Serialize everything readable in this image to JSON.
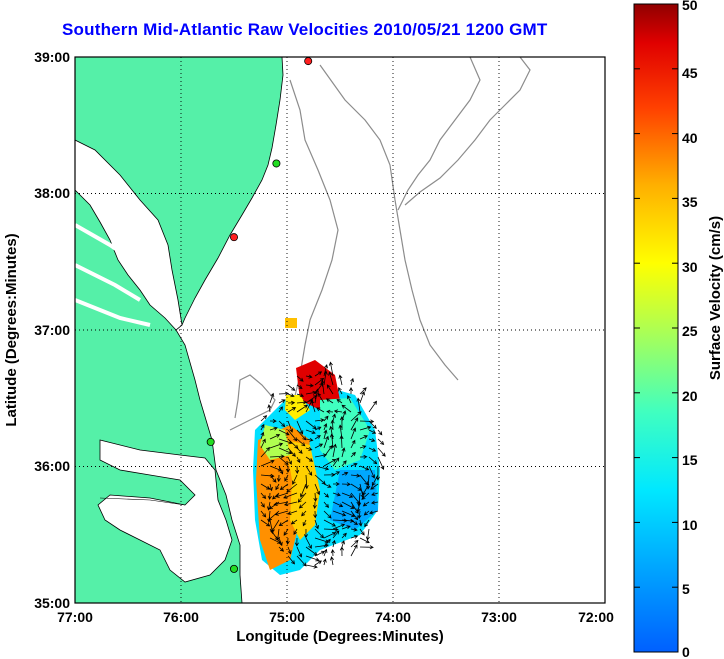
{
  "title": "Southern Mid-Atlantic Raw Velocities 2010/05/21 1200 GMT",
  "map": {
    "xlabel": "Longitude (Degrees:Minutes)",
    "ylabel": "Latitude (Degrees:Minutes)",
    "lon_ticks": [
      "77:00",
      "76:00",
      "75:00",
      "74:00",
      "73:00",
      "72:00"
    ],
    "lat_ticks": [
      "39:00",
      "38:00",
      "37:00",
      "36:00",
      "35:00"
    ],
    "lon_range": [
      -77,
      -72
    ],
    "lat_range": [
      35,
      39
    ],
    "grid": "dotted",
    "land_color": "#55f0a8",
    "coast_color": "#000000",
    "bathymetry_color": "#8c8c8c"
  },
  "stations": [
    {
      "lon": -74.8,
      "lat": 38.97,
      "color": "#ff2020"
    },
    {
      "lon": -75.1,
      "lat": 38.22,
      "color": "#22dd22"
    },
    {
      "lon": -75.5,
      "lat": 37.68,
      "color": "#ff2020"
    },
    {
      "lon": -75.72,
      "lat": 36.18,
      "color": "#22dd22"
    },
    {
      "lon": -75.5,
      "lat": 35.25,
      "color": "#22dd22"
    }
  ],
  "colorbar": {
    "label": "Surface Velocity (cm/s)",
    "ticks": [
      "50",
      "45",
      "40",
      "35",
      "30",
      "25",
      "20",
      "15",
      "10",
      "5",
      "0"
    ],
    "min": 0,
    "max": 50,
    "colormap": "jet"
  }
}
